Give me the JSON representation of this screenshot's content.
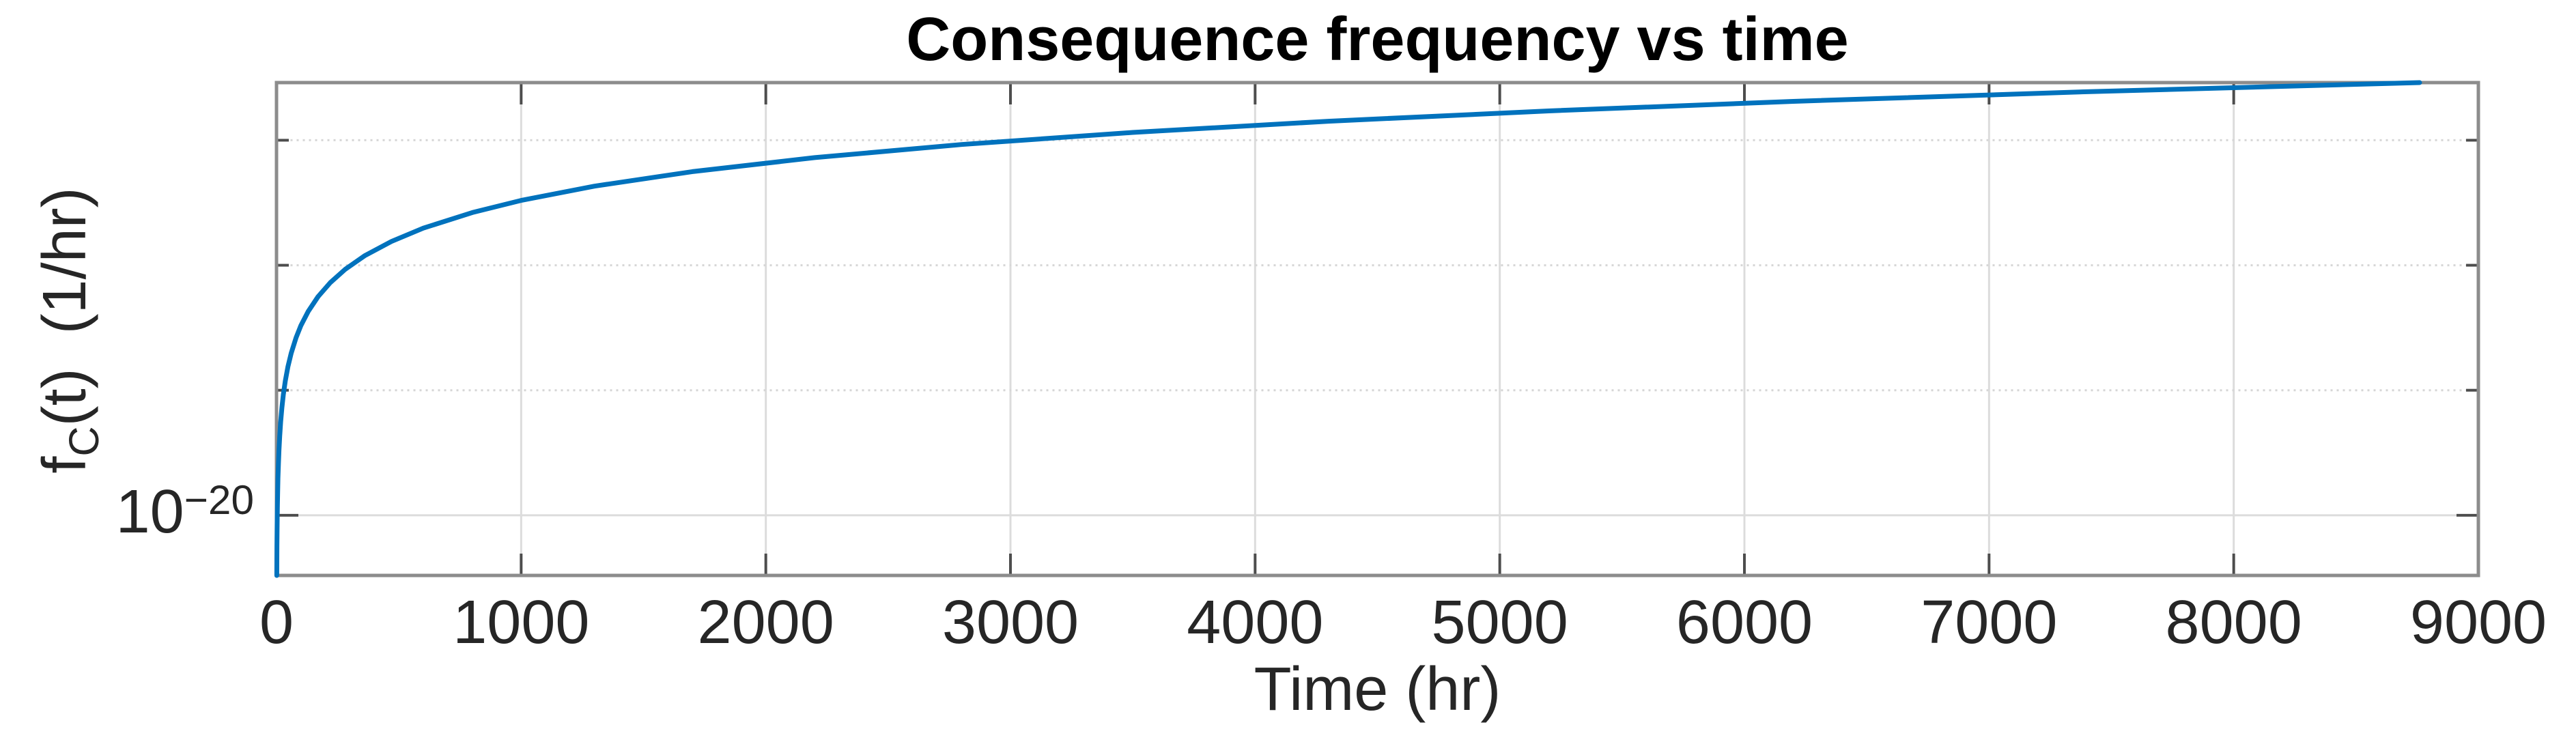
{
  "title": "Consequence frequency vs time",
  "axes": {
    "xlabel": "Time (hr)",
    "ylabel": {
      "pre": "f",
      "sub": "C",
      "post": "(t)  (1/hr)"
    },
    "x_tick_labels": [
      "0",
      "1000",
      "2000",
      "3000",
      "4000",
      "5000",
      "6000",
      "7000",
      "8000",
      "9000"
    ],
    "y_tick": {
      "base": "10",
      "exponent": "−20"
    }
  },
  "colors": {
    "line": "#0072BD",
    "axis_border": "#8c8c8c",
    "tick": "#4d4d4d",
    "grid_major": "#dcdcdc",
    "grid_minor": "#d6d6d6",
    "text": "#262626",
    "title_text": "#000000",
    "background": "#ffffff"
  },
  "chart_data": {
    "type": "line",
    "title": "Consequence frequency vs time",
    "xlabel": "Time (hr)",
    "ylabel": "f_C(t) (1/hr)",
    "grid": true,
    "legend": false,
    "x_axis": {
      "scale": "linear",
      "min": 0,
      "max": 9000,
      "ticks": [
        0,
        1000,
        2000,
        3000,
        4000,
        5000,
        6000,
        7000,
        8000,
        9000
      ],
      "gridlines": [
        1000,
        2000,
        3000,
        4000,
        5000,
        6000,
        7000,
        8000
      ]
    },
    "y_axis": {
      "scale": "log",
      "min": 3.3e-21,
      "max": 2.891e-17,
      "labeled_ticks": [
        {
          "value": 1e-20,
          "label": "10^-20"
        }
      ],
      "major_gridlines": [
        1e-20
      ],
      "minor_gridlines": [
        1e-19,
        1e-18,
        1e-17
      ],
      "minor_tick_values": [
        1e-17,
        1e-18,
        1e-19
      ]
    },
    "series": [
      {
        "name": "f_C(t)",
        "color": "#0072BD",
        "x": [
          1,
          1.3,
          1.7,
          2.2,
          2.8,
          3.6,
          4.7,
          6,
          8,
          10,
          13,
          17,
          22,
          28,
          36,
          47,
          60,
          80,
          100,
          130,
          170,
          220,
          280,
          360,
          470,
          600,
          800,
          1000,
          1300,
          1700,
          2200,
          2800,
          3500,
          4300,
          5200,
          6200,
          7400,
          8760
        ],
        "y": [
          3.3e-21,
          4.29e-21,
          5.61e-21,
          7.26e-21,
          9.24e-21,
          1.19e-20,
          1.55e-20,
          1.98e-20,
          2.64e-20,
          3.3e-20,
          4.29e-20,
          5.61e-20,
          7.26e-20,
          9.24e-20,
          1.19e-19,
          1.55e-19,
          1.98e-19,
          2.64e-19,
          3.3e-19,
          4.29e-19,
          5.61e-19,
          7.26e-19,
          9.24e-19,
          1.19e-18,
          1.55e-18,
          1.98e-18,
          2.64e-18,
          3.3e-18,
          4.29e-18,
          5.61e-18,
          7.26e-18,
          9.24e-18,
          1.155e-17,
          1.419e-17,
          1.716e-17,
          2.046e-17,
          2.442e-17,
          2.891e-17
        ]
      }
    ]
  }
}
